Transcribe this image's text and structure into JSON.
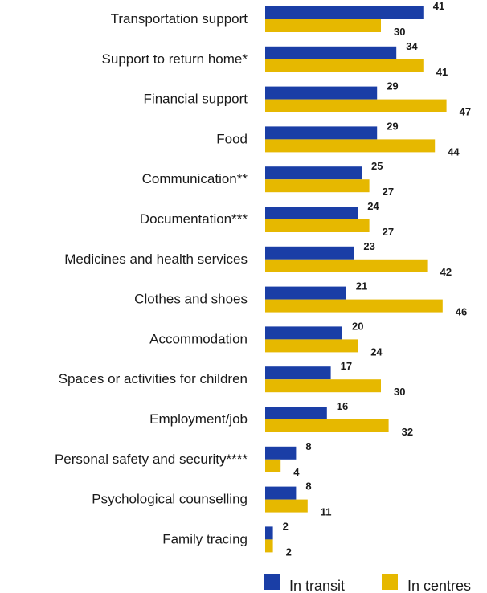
{
  "chart_data": {
    "type": "bar",
    "orientation": "horizontal",
    "categories": [
      "Transportation support",
      "Support to return home*",
      "Financial support",
      "Food",
      "Communication**",
      "Documentation***",
      "Medicines and health services",
      "Clothes and shoes",
      "Accommodation",
      "Spaces or activities for children",
      "Employment/job",
      "Personal safety and security****",
      "Psychological counselling",
      "Family tracing"
    ],
    "series": [
      {
        "name": "In transit",
        "color": "#1a3ea6",
        "values": [
          41,
          34,
          29,
          29,
          25,
          24,
          23,
          21,
          20,
          17,
          16,
          8,
          8,
          2
        ]
      },
      {
        "name": "In centres",
        "color": "#e6b800",
        "values": [
          30,
          41,
          47,
          44,
          27,
          27,
          42,
          46,
          24,
          30,
          32,
          4,
          11,
          2
        ]
      }
    ],
    "title": "",
    "xlabel": "",
    "ylabel": "",
    "xlim": [
      0,
      50
    ],
    "grid": false,
    "legend": "bottom-right"
  }
}
